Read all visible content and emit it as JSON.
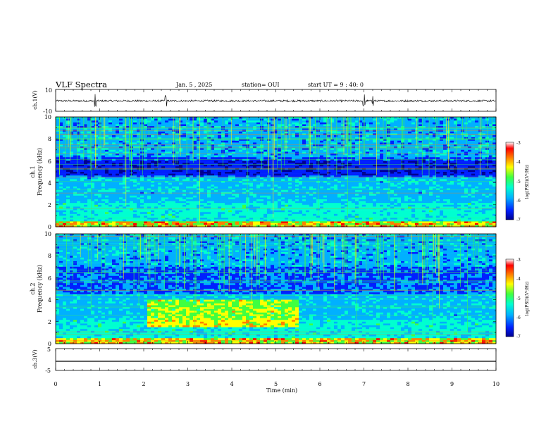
{
  "header": {
    "title": "VLF Spectra",
    "date": "Jan. 5 , 2025",
    "station": "station= OUI",
    "start": "start UT =  9 : 40: 0"
  },
  "panels": {
    "ch1_wave": {
      "ylabel": "ch.1(V)",
      "ticks": [
        "10",
        "-10"
      ]
    },
    "ch1_spec": {
      "ylabel": "ch.1",
      "ylabel2": "Frequency (kHz)",
      "ticks": [
        "0",
        "2",
        "4",
        "6",
        "8",
        "10"
      ]
    },
    "ch2_spec": {
      "ylabel": "ch.2",
      "ylabel2": "Frequency (kHz)",
      "ticks": [
        "0",
        "2",
        "4",
        "6",
        "8",
        "10"
      ]
    },
    "ch3_wave": {
      "ylabel": "ch.3(V)",
      "ticks": [
        "5",
        "-5"
      ]
    }
  },
  "xaxis": {
    "label": "Time (min)",
    "ticks": [
      "0",
      "1",
      "2",
      "3",
      "4",
      "5",
      "6",
      "7",
      "8",
      "9",
      "10"
    ]
  },
  "colorbar": {
    "label": "log(PSD)(V²/Hz)",
    "ticks": [
      "-3",
      "-4",
      "-5",
      "-6",
      "-7"
    ]
  },
  "colors": {
    "scale": [
      "#000090",
      "#0020ff",
      "#00b0ff",
      "#00ffd0",
      "#40ff40",
      "#ffff00",
      "#ff8000",
      "#ff0000",
      "#ffffff"
    ],
    "wave": "#000000"
  },
  "chart_data": [
    {
      "type": "line",
      "title": "VLF Spectra",
      "xlabel": "",
      "ylabel": "ch.1(V)",
      "xlim": [
        0,
        10
      ],
      "ylim": [
        -10,
        10
      ],
      "series": [
        {
          "values_approx": "noise band around -0.5 V, amplitude about ±1 V, spikes near 0.9, 2.5, 7.0, 7.2 min"
        }
      ]
    },
    {
      "type": "heatmap",
      "xlabel": "",
      "ylabel": "Frequency (kHz)",
      "xlim": [
        0,
        10
      ],
      "ylim": [
        0,
        10
      ],
      "clim": [
        -7,
        -3
      ],
      "features": {
        "impulsive_broadband_upper": "frequent vertical streaks above 6 kHz",
        "dark_band_kHz": [
          4.6,
          6.4
        ],
        "bright_low_band_kHz": [
          0,
          0.5
        ]
      }
    },
    {
      "type": "heatmap",
      "xlabel": "",
      "ylabel": "Frequency (kHz)",
      "xlim": [
        0,
        10
      ],
      "ylim": [
        0,
        10
      ],
      "clim": [
        -7,
        -3
      ],
      "features": {
        "impulsive_broadband_upper": "frequent vertical streaks above 7 kHz",
        "enhanced_hiss_kHz": [
          1.5,
          4.0
        ],
        "enhanced_hiss_time_min": [
          2.0,
          5.5
        ]
      }
    },
    {
      "type": "line",
      "xlabel": "Time (min)",
      "ylabel": "ch.3(V)",
      "xlim": [
        0,
        10
      ],
      "ylim": [
        -5,
        5
      ],
      "series": [
        {
          "values_approx": "flat at about -1.7 V"
        }
      ]
    }
  ]
}
